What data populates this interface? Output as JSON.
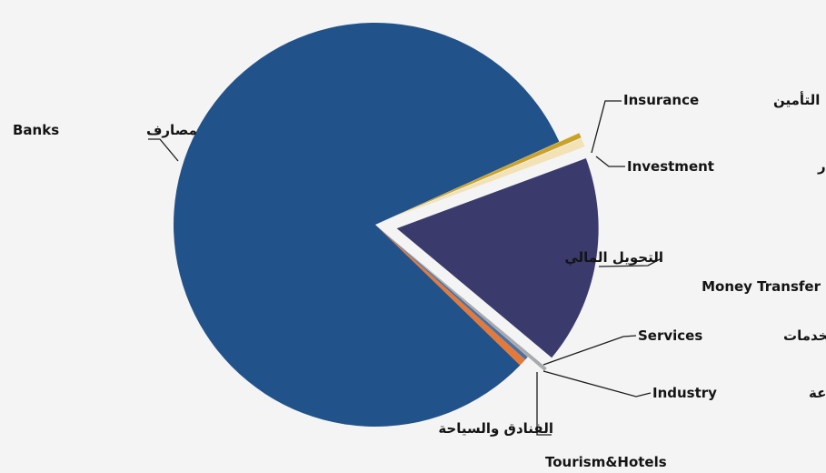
{
  "chart_data": {
    "type": "pie",
    "title": "",
    "legend": "none",
    "slices": [
      {
        "label_en": "Money Transfer",
        "label_ar": "التحويل المالي",
        "value": 16.7,
        "color": "#3b3a6c",
        "exploded": true
      },
      {
        "label_en": "Services",
        "label_ar": "الخدمات",
        "value": 0.3,
        "color": "#a7a9ad",
        "exploded": true
      },
      {
        "label_en": "Industry",
        "label_ar": "الصناعة",
        "value": 0.3,
        "color": "#4f6f9f",
        "exploded": false
      },
      {
        "label_en": "Tourism&Hotels",
        "label_ar": "الفنادق والسياحة",
        "value": 0.6,
        "color": "#e17a3a",
        "exploded": false
      },
      {
        "label_en": "Banks",
        "label_ar": "مصارف",
        "value": 81.0,
        "color": "#22528a",
        "exploded": false
      },
      {
        "label_en": "Insurance",
        "label_ar": "التأمين",
        "value": 0.4,
        "color": "#c9a227",
        "exploded": true
      },
      {
        "label_en": "Investment",
        "label_ar": "الاستثمار",
        "value": 0.7,
        "color": "#f2e2b6",
        "exploded": true
      }
    ],
    "labels": {
      "insurance": {
        "en": "Insurance",
        "ar": "التأمين"
      },
      "investment": {
        "en": "Investment",
        "ar": "الاستثمار"
      },
      "money_transfer": {
        "en": "Money Transfer",
        "ar": "التحويل المالي"
      },
      "services": {
        "en": "Services",
        "ar": "الخدمات"
      },
      "industry": {
        "en": "Industry",
        "ar": "الصناعة"
      },
      "tourism": {
        "en": "Tourism&Hotels",
        "ar": "الفنادق والسياحة"
      },
      "banks": {
        "en": "Banks",
        "ar": "مصارف"
      }
    }
  }
}
